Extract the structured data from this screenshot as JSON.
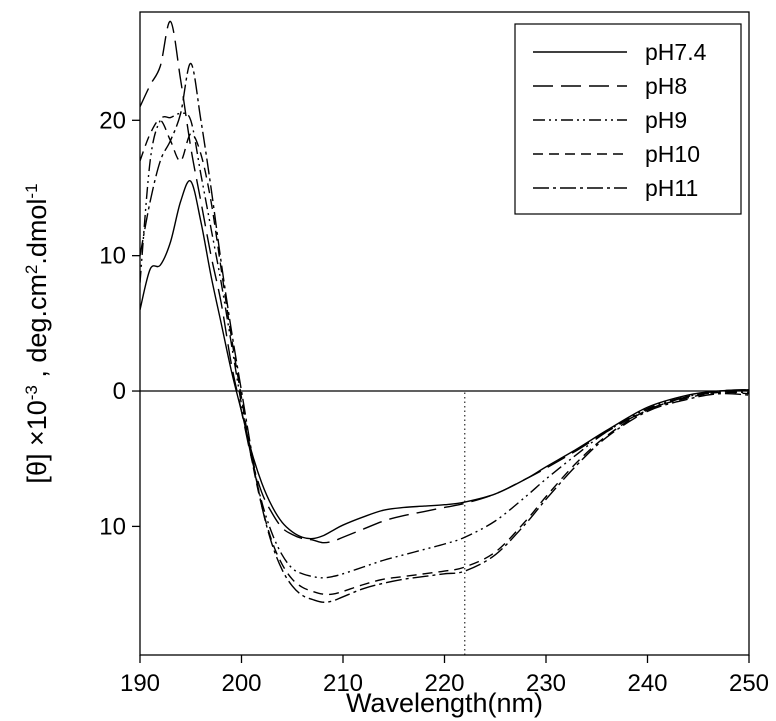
{
  "chart_data": {
    "type": "line",
    "xlabel": "Wavelength(nm)",
    "ylabel_parts": {
      "main": "[θ]  ×10",
      "exp1": "-3",
      "mid": " , deg.cm",
      "exp2": "2",
      "end": ".dmol",
      "exp3": "-1"
    },
    "xlim": [
      190,
      250
    ],
    "ylim": [
      -19.5,
      28
    ],
    "x_ticks": [
      190,
      200,
      210,
      220,
      230,
      240,
      250
    ],
    "x_tick_labels": [
      "190",
      "200",
      "210",
      "220",
      "230",
      "240",
      "250"
    ],
    "y_ticks": [
      -10,
      0,
      10,
      20
    ],
    "y_tick_labels": [
      "10",
      "0",
      "10",
      "20"
    ],
    "reference_lines": [
      {
        "axis": "y",
        "value": 0,
        "style": "solid"
      },
      {
        "axis": "x",
        "value": 222,
        "style": "dotted",
        "from": -19.5,
        "to": 0
      }
    ],
    "legend_position": "top-right",
    "series": [
      {
        "name": "pH7.4",
        "dash": "solid",
        "x": [
          190,
          191,
          192,
          193,
          194,
          195,
          196,
          197,
          198,
          199,
          200,
          201,
          202,
          203,
          204,
          205,
          206,
          207,
          208,
          209,
          210,
          212,
          214,
          216,
          218,
          220,
          222,
          225,
          228,
          230,
          233,
          236,
          240,
          244,
          247,
          250
        ],
        "y": [
          6,
          9,
          9.3,
          11,
          14,
          15.5,
          12.5,
          8.5,
          5,
          1.5,
          -1.5,
          -4.5,
          -6.8,
          -8.5,
          -9.7,
          -10.4,
          -10.8,
          -10.9,
          -10.7,
          -10.3,
          -9.9,
          -9.3,
          -8.8,
          -8.6,
          -8.5,
          -8.4,
          -8.2,
          -7.6,
          -6.5,
          -5.6,
          -4.3,
          -2.9,
          -1.2,
          -0.3,
          0,
          0.1
        ]
      },
      {
        "name": "pH8",
        "dash": "long-dash",
        "x": [
          190,
          191,
          192,
          193,
          194,
          195,
          196,
          197,
          198,
          199,
          200,
          201,
          202,
          203,
          204,
          205,
          206,
          207,
          208,
          209,
          210,
          212,
          214,
          216,
          218,
          220,
          222,
          225,
          228,
          230,
          233,
          236,
          240,
          244,
          247,
          250
        ],
        "y": [
          21,
          22.6,
          24,
          27.3,
          23,
          18,
          14,
          10,
          6.5,
          2,
          -1.5,
          -5,
          -7.5,
          -9,
          -10.1,
          -10.6,
          -10.9,
          -11,
          -11.2,
          -11.1,
          -10.8,
          -10.2,
          -9.6,
          -9.2,
          -8.9,
          -8.6,
          -8.3,
          -7.6,
          -6.5,
          -5.7,
          -4.4,
          -3,
          -1.4,
          -0.4,
          0,
          0.1
        ]
      },
      {
        "name": "pH9",
        "dash": "dash-dot-dot",
        "x": [
          190,
          191,
          192,
          193,
          194,
          195,
          196,
          197,
          198,
          199,
          200,
          201,
          202,
          203,
          204,
          205,
          206,
          207,
          208,
          209,
          210,
          212,
          214,
          216,
          218,
          220,
          222,
          225,
          228,
          230,
          233,
          236,
          240,
          244,
          247,
          250
        ],
        "y": [
          8,
          17,
          20,
          20.2,
          20.5,
          20,
          16,
          12,
          8,
          3.5,
          -1,
          -5,
          -8.2,
          -10.5,
          -12.1,
          -13.1,
          -13.5,
          -13.7,
          -13.8,
          -13.7,
          -13.5,
          -13,
          -12.5,
          -12.1,
          -11.7,
          -11.3,
          -10.8,
          -9.6,
          -7.8,
          -6.5,
          -4.7,
          -3,
          -1.3,
          -0.4,
          -0.1,
          -0.1
        ]
      },
      {
        "name": "pH10",
        "dash": "dash",
        "x": [
          190,
          191,
          192,
          193,
          194,
          195,
          196,
          197,
          198,
          199,
          200,
          201,
          202,
          203,
          204,
          205,
          206,
          207,
          208,
          209,
          210,
          212,
          214,
          216,
          218,
          220,
          222,
          225,
          228,
          230,
          233,
          236,
          240,
          244,
          247,
          250
        ],
        "y": [
          17,
          19,
          20,
          18.5,
          17,
          19,
          17.5,
          14,
          9,
          4,
          -0.5,
          -5,
          -8.5,
          -11.1,
          -12.8,
          -13.9,
          -14.5,
          -14.8,
          -15,
          -15,
          -14.8,
          -14.3,
          -13.9,
          -13.7,
          -13.5,
          -13.3,
          -13,
          -11.9,
          -9.6,
          -7.8,
          -5.3,
          -3.3,
          -1.4,
          -0.5,
          -0.1,
          -0.2
        ]
      },
      {
        "name": "pH11",
        "dash": "dash-dot",
        "x": [
          190,
          191,
          192,
          193,
          194,
          195,
          196,
          197,
          198,
          199,
          200,
          201,
          202,
          203,
          204,
          205,
          206,
          207,
          208,
          209,
          210,
          212,
          214,
          216,
          218,
          220,
          222,
          225,
          228,
          230,
          233,
          236,
          240,
          244,
          247,
          250
        ],
        "y": [
          10,
          14,
          17,
          18.5,
          20.5,
          24.2,
          20,
          15,
          9.5,
          4.5,
          0,
          -4.5,
          -8.5,
          -11.3,
          -13.2,
          -14.4,
          -15.1,
          -15.4,
          -15.6,
          -15.5,
          -15.2,
          -14.6,
          -14.2,
          -13.9,
          -13.7,
          -13.5,
          -13.3,
          -12.1,
          -9.8,
          -8,
          -5.5,
          -3.4,
          -1.5,
          -0.6,
          -0.2,
          -0.3
        ]
      }
    ]
  }
}
